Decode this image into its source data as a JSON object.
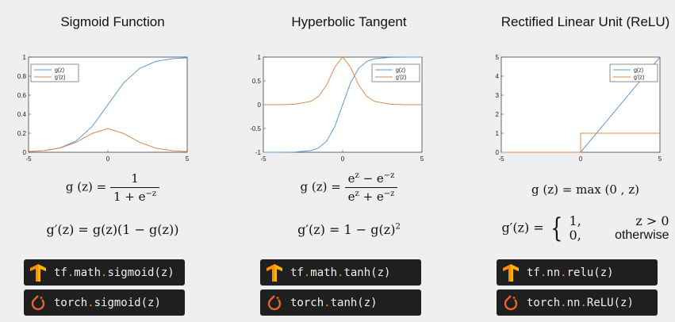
{
  "colors": {
    "background": "#efefef",
    "series_g": "#5b9bd5",
    "series_gprime": "#d98c4e",
    "code_bg": "#1f1f1f",
    "code_dot": "#ff8c00",
    "tf_orange": "#ff8f00",
    "torch_orange": "#e8642c"
  },
  "panels": [
    {
      "title": "Sigmoid Function",
      "formula_g_lhs": "g (z) =",
      "formula_g_num": "1",
      "formula_g_den": "1 + e",
      "formula_g_den_sup": "−z",
      "formula_gp": "g′(z) = g(z)(1 − g(z))",
      "tf_parts": [
        "tf",
        ".",
        "math",
        ".",
        "sigmoid(z)"
      ],
      "torch_parts": [
        "torch",
        ".",
        "sigmoid(z)"
      ]
    },
    {
      "title": "Hyperbolic Tangent",
      "formula_g_lhs": "g (z) =",
      "formula_g_num": "e",
      "formula_g_num_sup1": "z",
      "formula_g_num_mid": " − e",
      "formula_g_num_sup2": "−z",
      "formula_g_den": "e",
      "formula_g_den_sup1": "z",
      "formula_g_den_mid": " + e",
      "formula_g_den_sup2": "−z",
      "formula_gp": "g′(z) = 1 − g(z)",
      "formula_gp_sup": "2",
      "tf_parts": [
        "tf",
        ".",
        "math",
        ".",
        "tanh(z)"
      ],
      "torch_parts": [
        "torch",
        ".",
        "tanh(z)"
      ]
    },
    {
      "title": "Rectified Linear Unit (ReLU)",
      "formula_g": "g (z) = max (0 , z)",
      "formula_gp_lhs": "g′(z) =",
      "case1_val": "1,",
      "case1_cond": "z > 0",
      "case2_val": "0,",
      "case2_cond": "otherwise",
      "tf_parts": [
        "tf",
        ".",
        "nn",
        ".",
        "relu(z)"
      ],
      "torch_parts": [
        "torch",
        ".",
        "nn",
        ".",
        "ReLU(z)"
      ]
    }
  ],
  "chart_data": [
    {
      "type": "line",
      "title": "",
      "xlim": [
        -5,
        5
      ],
      "ylim": [
        0,
        1
      ],
      "xticks": [
        "-5",
        "0",
        "5"
      ],
      "yticks": [
        "0",
        "0.2",
        "0.4",
        "0.6",
        "0.8",
        "1"
      ],
      "legend_position": "top-left",
      "series": [
        {
          "name": "g(z)",
          "x": [
            -5,
            -4,
            -3,
            -2,
            -1,
            0,
            1,
            2,
            3,
            4,
            5
          ],
          "y": [
            0.007,
            0.018,
            0.047,
            0.119,
            0.269,
            0.5,
            0.731,
            0.881,
            0.953,
            0.982,
            0.993
          ]
        },
        {
          "name": "g'(z)",
          "x": [
            -5,
            -4,
            -3,
            -2,
            -1,
            0,
            1,
            2,
            3,
            4,
            5
          ],
          "y": [
            0.007,
            0.018,
            0.045,
            0.105,
            0.197,
            0.25,
            0.197,
            0.105,
            0.045,
            0.018,
            0.007
          ]
        }
      ]
    },
    {
      "type": "line",
      "title": "",
      "xlim": [
        -5,
        5
      ],
      "ylim": [
        -1,
        1
      ],
      "xticks": [
        "-5",
        "0",
        "5"
      ],
      "yticks": [
        "-1",
        "-0.5",
        "0",
        "0.5",
        "1"
      ],
      "legend_position": "top-right",
      "series": [
        {
          "name": "g(z)",
          "x": [
            -5,
            -4,
            -3,
            -2,
            -1.5,
            -1,
            -0.5,
            0,
            0.5,
            1,
            1.5,
            2,
            3,
            4,
            5
          ],
          "y": [
            -1,
            -0.999,
            -0.995,
            -0.964,
            -0.905,
            -0.762,
            -0.462,
            0,
            0.462,
            0.762,
            0.905,
            0.964,
            0.995,
            0.999,
            1
          ]
        },
        {
          "name": "g'(z)",
          "x": [
            -5,
            -4,
            -3,
            -2,
            -1.5,
            -1,
            -0.5,
            0,
            0.5,
            1,
            1.5,
            2,
            3,
            4,
            5
          ],
          "y": [
            0,
            0.001,
            0.01,
            0.071,
            0.181,
            0.42,
            0.786,
            1,
            0.786,
            0.42,
            0.181,
            0.071,
            0.01,
            0.001,
            0
          ]
        }
      ]
    },
    {
      "type": "line",
      "title": "",
      "xlim": [
        -5,
        5
      ],
      "ylim": [
        0,
        5
      ],
      "xticks": [
        "-5",
        "0",
        "5"
      ],
      "yticks": [
        "0",
        "1",
        "2",
        "3",
        "4",
        "5"
      ],
      "legend_position": "top-right",
      "series": [
        {
          "name": "g(z)",
          "x": [
            -5,
            0,
            5
          ],
          "y": [
            0,
            0,
            5
          ]
        },
        {
          "name": "g'(z)",
          "x": [
            -5,
            0,
            0,
            5
          ],
          "y": [
            0,
            0,
            1,
            1
          ]
        }
      ]
    }
  ]
}
